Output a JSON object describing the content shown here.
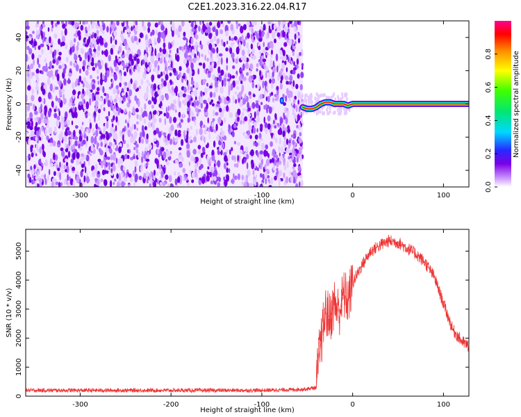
{
  "title": "C2E1.2023.316.22.04.R17",
  "colorbar": {
    "label": "Normalized spectral amplitude",
    "ticks": [
      "0.0",
      "0.2",
      "0.4",
      "0.6",
      "0.8"
    ],
    "tick_values": [
      0.0,
      0.2,
      0.4,
      0.6,
      0.8
    ],
    "range": [
      0,
      1
    ]
  },
  "chart_data": [
    {
      "type": "heatmap",
      "xlabel": "Height of straight line (km)",
      "ylabel": "Frequency (Hz)",
      "xlim": [
        -360,
        128
      ],
      "ylim": [
        -50,
        50
      ],
      "xticks": [
        "-300",
        "-200",
        "-100",
        "0",
        "100"
      ],
      "xtick_values": [
        -300,
        -200,
        -100,
        0,
        100
      ],
      "yticks": [
        "40",
        "20",
        "0",
        "-20",
        "-40"
      ],
      "ytick_values": [
        40,
        20,
        0,
        -20,
        -40
      ],
      "noise_region_x": [
        -360,
        -55
      ],
      "signal_trace": {
        "x": [
          -55,
          -50,
          -45,
          -40,
          -35,
          -30,
          -25,
          -20,
          -15,
          -10,
          -5,
          0,
          50,
          128
        ],
        "y": [
          -2,
          -3,
          -3,
          -2,
          0,
          1,
          1,
          0,
          0,
          0,
          -1,
          0,
          0,
          0
        ]
      },
      "colors": [
        "#ffffff",
        "#e6ccff",
        "#b070ff",
        "#7a00e6",
        "#1a1aff",
        "#00c8ff",
        "#00e676",
        "#30ff00",
        "#ffff00",
        "#ff8c00",
        "#ff0000",
        "#ff0090"
      ]
    },
    {
      "type": "line",
      "xlabel": "Height of straight line (km)",
      "ylabel": "SNR (10 * v/v)",
      "xlim": [
        -360,
        128
      ],
      "ylim": [
        0,
        5750
      ],
      "xticks": [
        "-300",
        "-200",
        "-100",
        "0",
        "100"
      ],
      "xtick_values": [
        -300,
        -200,
        -100,
        0,
        100
      ],
      "yticks": [
        "0",
        "1000",
        "2000",
        "3000",
        "4000",
        "5000"
      ],
      "ytick_values": [
        0,
        1000,
        2000,
        3000,
        4000,
        5000
      ],
      "series": [
        {
          "color": "#ee3333",
          "x": [
            -360,
            -300,
            -200,
            -100,
            -60,
            -50,
            -40,
            -38,
            -35,
            -30,
            -25,
            -20,
            -15,
            -10,
            -5,
            0,
            10,
            20,
            30,
            40,
            50,
            60,
            70,
            80,
            90,
            100,
            110,
            120,
            128
          ],
          "y": [
            200,
            200,
            200,
            200,
            230,
            250,
            300,
            1200,
            1800,
            2900,
            2700,
            3200,
            2900,
            3500,
            3300,
            3900,
            4500,
            5000,
            5200,
            5350,
            5300,
            5100,
            4900,
            4600,
            4100,
            3200,
            2300,
            1900,
            1700
          ]
        }
      ]
    }
  ]
}
